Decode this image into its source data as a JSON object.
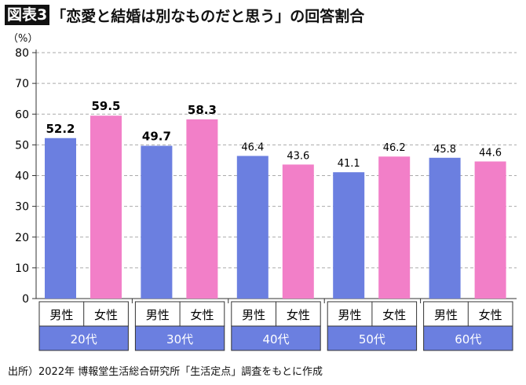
{
  "title": {
    "badge": "図表3",
    "text": "「恋愛と結婚は別なものだと思う」の回答割合"
  },
  "unit": "（%）",
  "source": "出所）2022年 博報堂生活総合研究所「生活定点」調査をもとに作成",
  "chart_data": {
    "type": "bar",
    "ylim": [
      0,
      80
    ],
    "yticks": [
      0,
      10,
      20,
      30,
      40,
      50,
      60,
      70,
      80
    ],
    "grid": true,
    "categories": [
      "20代",
      "30代",
      "40代",
      "50代",
      "60代"
    ],
    "subcategories": [
      "男性",
      "女性"
    ],
    "series": [
      {
        "name": "男性",
        "values": [
          52.2,
          49.7,
          46.4,
          41.1,
          45.8
        ],
        "color": "#6b7fe0"
      },
      {
        "name": "女性",
        "values": [
          59.5,
          58.3,
          43.6,
          46.2,
          44.6
        ],
        "color": "#f27fc8"
      }
    ],
    "bold_label_categories": [
      "20代",
      "30代"
    ]
  },
  "colors": {
    "category_band": "#6b7fe0",
    "grid": "#aaaaaa"
  }
}
